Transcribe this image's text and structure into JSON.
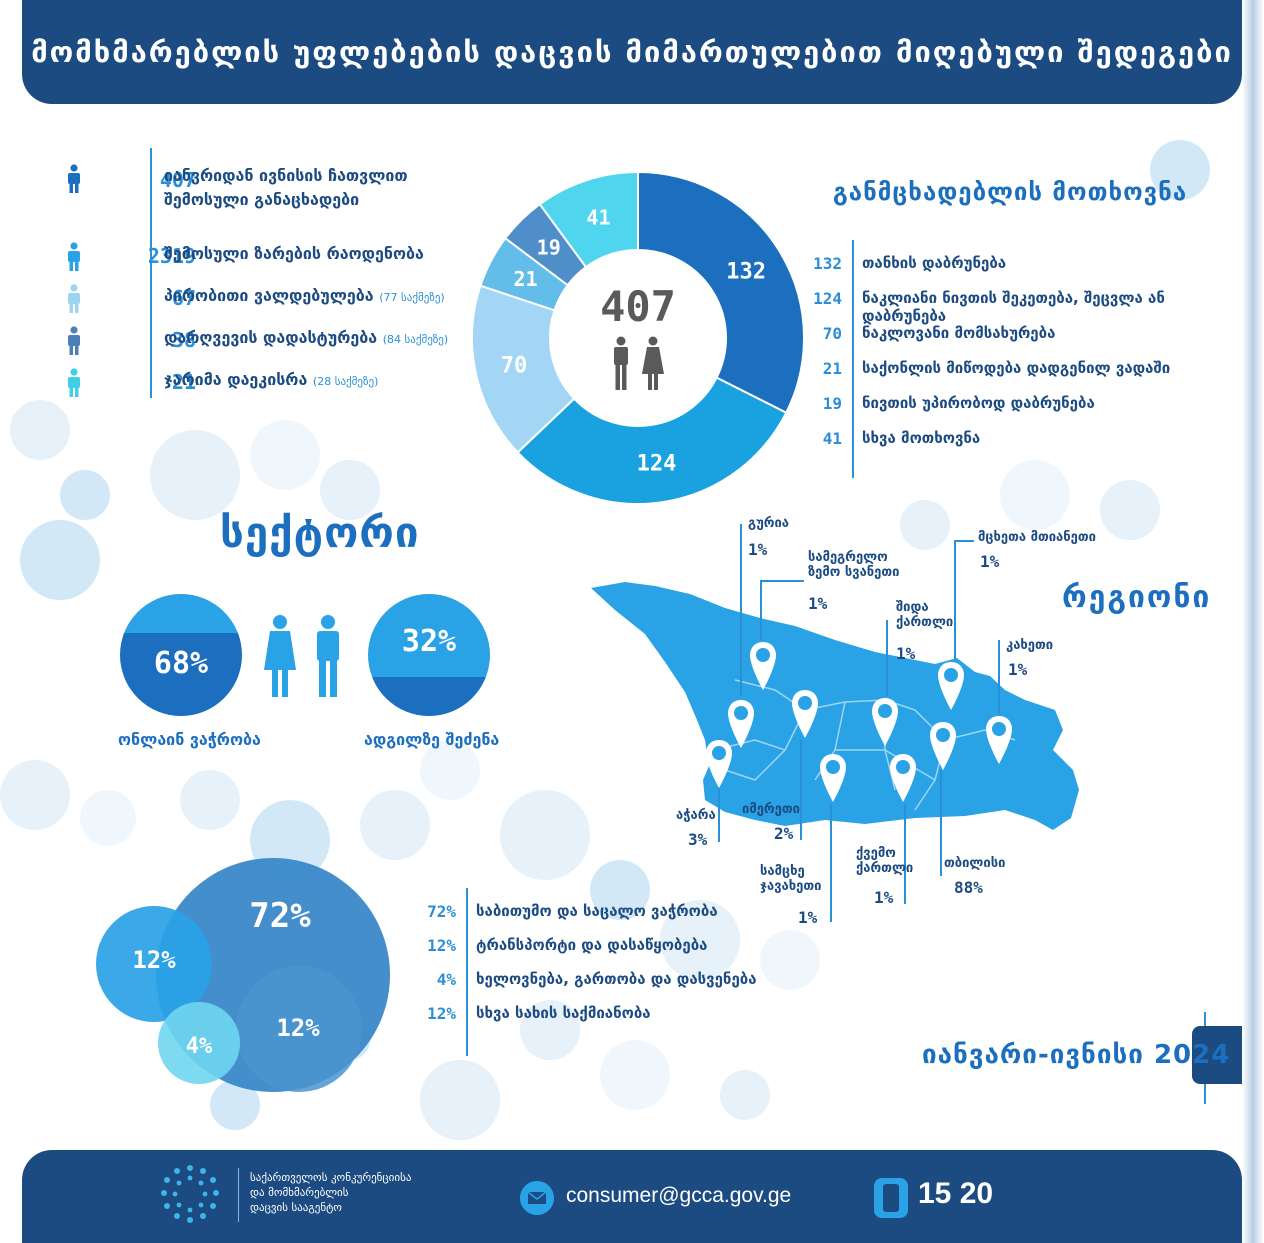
{
  "header": {
    "title": "მომხმარებლის უფლებების დაცვის მიმართულებით მიღებული შედეგები"
  },
  "stats": [
    {
      "value": "407",
      "label_line1": "იანვრიდან ივნისის ჩათვლით",
      "label_line2": "შემოსული განაცხადები",
      "note": "",
      "color": "#1c6fbf"
    },
    {
      "value": "2319",
      "label_line1": "შემოსული ზარების რაოდენობა",
      "label_line2": "",
      "note": "",
      "color": "#2aa2e6"
    },
    {
      "value": "67",
      "label_line1": "პირობითი ვალდებულება",
      "label_line2": "",
      "note": "(77 საქმეზე)",
      "color": "#9fd3f2"
    },
    {
      "value": "38",
      "label_line1": "დარღვევის დადასტურება",
      "label_line2": "",
      "note": "(84 საქმეზე)",
      "color": "#4a7fb8"
    },
    {
      "value": "21",
      "label_line1": "ჯარიმა დაეკისრა",
      "label_line2": "",
      "note": "(28 საქმეზე)",
      "color": "#3fd0e8"
    }
  ],
  "requests": {
    "title": "განმცხადებლის მოთხოვნა",
    "total": "407",
    "items": [
      {
        "value": 132,
        "label": "თანხის დაბრუნება",
        "color": "#1c6fbf"
      },
      {
        "value": 124,
        "label": "ნაკლიანი ნივთის შეკეთება, შეცვლა ან დაბრუნება",
        "color": "#1aa2e0"
      },
      {
        "value": 70,
        "label": "ნაკლოვანი მომსახურება",
        "color": "#a2d6f4"
      },
      {
        "value": 21,
        "label": "საქონლის მიწოდება დადგენილ ვადაში",
        "color": "#62bde9"
      },
      {
        "value": 19,
        "label": "ნივთის უპირობოდ დაბრუნება",
        "color": "#4f8ec9"
      },
      {
        "value": 41,
        "label": "სხვა მოთხოვნა",
        "color": "#4fd6ee"
      }
    ]
  },
  "sector": {
    "title": "სექტორი",
    "online": {
      "value": "68%",
      "label": "ონლაინ ვაჭრობა",
      "fraction": 0.68
    },
    "onsite": {
      "value": "32%",
      "label": "ადგილზე შეძენა",
      "fraction": 0.32
    }
  },
  "regions": {
    "title": "რეგიონი",
    "items": [
      {
        "name": "გურია",
        "value": "1%"
      },
      {
        "name_line1": "სამეგრელო",
        "name_line2": "ზემო სვანეთი",
        "value": "1%"
      },
      {
        "name_line1": "შიდა",
        "name_line2": "ქართლი",
        "value": "1%"
      },
      {
        "name": "მცხეთა მთიანეთი",
        "value": "1%"
      },
      {
        "name": "კახეთი",
        "value": "1%"
      },
      {
        "name": "აჭარა",
        "value": "3%"
      },
      {
        "name": "იმერეთი",
        "value": "2%"
      },
      {
        "name_line1": "სამცხე",
        "name_line2": "ჯავახეთი",
        "value": "1%"
      },
      {
        "name_line1": "ქვემო",
        "name_line2": "ქართლი",
        "value": "1%"
      },
      {
        "name": "თბილისი",
        "value": "88%"
      }
    ]
  },
  "sectors_breakdown": [
    {
      "value": "72%",
      "label": "საბითუმო და საცალო ვაჭრობა",
      "color": "#2f86c8"
    },
    {
      "value": "12%",
      "label": "ტრანსპორტი და დასაწყობება",
      "color": "#2aa2e6"
    },
    {
      "value": "4%",
      "label": "ხელოვნება, გართობა და დასვენება",
      "color": "#6fd6f0"
    },
    {
      "value": "12%",
      "label": "სხვა სახის საქმიანობა",
      "color": "#3f8fcf"
    }
  ],
  "period": "იანვარი-ივნისი 2024",
  "footer": {
    "org_line1": "საქართველოს კონკურენციისა",
    "org_line2": "და მომხმარებლის",
    "org_line3": "დაცვის სააგენტო",
    "email": "consumer@gcca.gov.ge",
    "phone": "15 20"
  },
  "chart_data": [
    {
      "type": "pie",
      "title": "განმცხადებლის მოთხოვნა",
      "categories": [
        "თანხის დაბრუნება",
        "ნაკლიანი ნივთის შეკეთება, შეცვლა ან დაბრუნება",
        "ნაკლოვანი მომსახურება",
        "საქონლის მიწოდება დადგენილ ვადაში",
        "ნივთის უპირობოდ დაბრუნება",
        "სხვა მოთხოვნა"
      ],
      "values": [
        132,
        124,
        70,
        21,
        19,
        41
      ]
    },
    {
      "type": "pie",
      "title": "სექტორი",
      "categories": [
        "ონლაინ ვაჭრობა",
        "ადგილზე შეძენა"
      ],
      "values": [
        68,
        32
      ]
    },
    {
      "type": "bar",
      "title": "რეგიონი",
      "categories": [
        "გურია",
        "სამეგრელო ზემო სვანეთი",
        "შიდა ქართლი",
        "მცხეთა მთიანეთი",
        "კახეთი",
        "აჭარა",
        "იმერეთი",
        "სამცხე ჯავახეთი",
        "ქვემო ქართლი",
        "თბილისი"
      ],
      "values": [
        1,
        1,
        1,
        1,
        1,
        3,
        2,
        1,
        1,
        88
      ]
    },
    {
      "type": "bar",
      "categories": [
        "საბითუმო და საცალო ვაჭრობა",
        "ტრანსპორტი და დასაწყობება",
        "ხელოვნება, გართობა და დასვენება",
        "სხვა სახის საქმიანობა"
      ],
      "values": [
        72,
        12,
        4,
        12
      ]
    }
  ]
}
